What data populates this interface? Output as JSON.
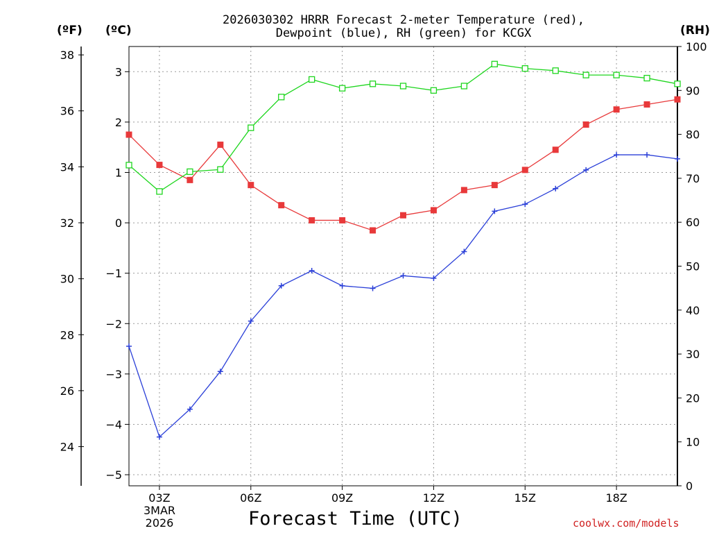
{
  "title": {
    "line1": "2026030302 HRRR Forecast 2-meter Temperature (red),",
    "line2": "Dewpoint (blue), RH (green) for KCGX"
  },
  "units": {
    "fahrenheit": "(ºF)",
    "celsius": "(ºC)",
    "rh": "(RH)"
  },
  "x_axis_title": "Forecast Time (UTC)",
  "credit": "coolwx.com/models",
  "date_label": {
    "day": "3MAR",
    "year": "2026"
  },
  "colors": {
    "temperature": "#e8393a",
    "dewpoint": "#2a3fd8",
    "rh": "#1ed61e",
    "grid": "#999999"
  },
  "chart_data": {
    "type": "line",
    "title": "2026030302 HRRR Forecast 2-meter Temperature (red), Dewpoint (blue), RH (green) for KCGX",
    "xlabel": "Forecast Time (UTC)",
    "x_hours": [
      2,
      3,
      4,
      5,
      6,
      7,
      8,
      9,
      10,
      11,
      12,
      13,
      14,
      15,
      16,
      17,
      18,
      19,
      20
    ],
    "x_range": [
      2,
      20
    ],
    "x_ticks": [
      {
        "hour": 3,
        "label": "03Z"
      },
      {
        "hour": 6,
        "label": "06Z"
      },
      {
        "hour": 9,
        "label": "09Z"
      },
      {
        "hour": 12,
        "label": "12Z"
      },
      {
        "hour": 15,
        "label": "15Z"
      },
      {
        "hour": 18,
        "label": "18Z"
      }
    ],
    "left_axis_f": {
      "label": "(ºF)",
      "range": [
        22.6,
        38.3
      ],
      "ticks": [
        "24",
        "26",
        "28",
        "30",
        "32",
        "34",
        "36",
        "38"
      ]
    },
    "left_axis_c": {
      "label": "(ºC)",
      "range": [
        -5.22,
        3.5
      ],
      "ticks": [
        "−5",
        "−4",
        "−3",
        "−2",
        "−1",
        "0",
        "1",
        "2",
        "3"
      ]
    },
    "right_axis_rh": {
      "label": "(RH)",
      "range": [
        0,
        100
      ],
      "ticks": [
        "0",
        "10",
        "20",
        "30",
        "40",
        "50",
        "60",
        "70",
        "80",
        "90",
        "100"
      ]
    },
    "series": [
      {
        "name": "Temperature",
        "axis": "celsius",
        "color": "#e8393a",
        "marker": "filled-square",
        "values": [
          1.75,
          1.15,
          0.85,
          1.55,
          0.75,
          0.35,
          0.05,
          0.05,
          -0.15,
          0.15,
          0.25,
          0.65,
          0.75,
          1.05,
          1.45,
          1.95,
          2.25,
          2.35,
          2.45
        ]
      },
      {
        "name": "Dewpoint",
        "axis": "celsius",
        "color": "#2a3fd8",
        "marker": "plus",
        "values": [
          -2.45,
          -4.25,
          -3.7,
          -2.95,
          -1.95,
          -1.25,
          -0.95,
          -1.25,
          -1.3,
          -1.05,
          -1.1,
          -0.57,
          0.23,
          0.37,
          0.68,
          1.05,
          1.35,
          1.35,
          1.27
        ]
      },
      {
        "name": "RH",
        "axis": "rh",
        "color": "#1ed61e",
        "marker": "open-square",
        "values": [
          73,
          67,
          71.5,
          72,
          81.5,
          88.5,
          92.5,
          90.5,
          91.5,
          91,
          90,
          91,
          96,
          95,
          94.5,
          93.5,
          93.5,
          92.8,
          91.5
        ]
      }
    ]
  }
}
